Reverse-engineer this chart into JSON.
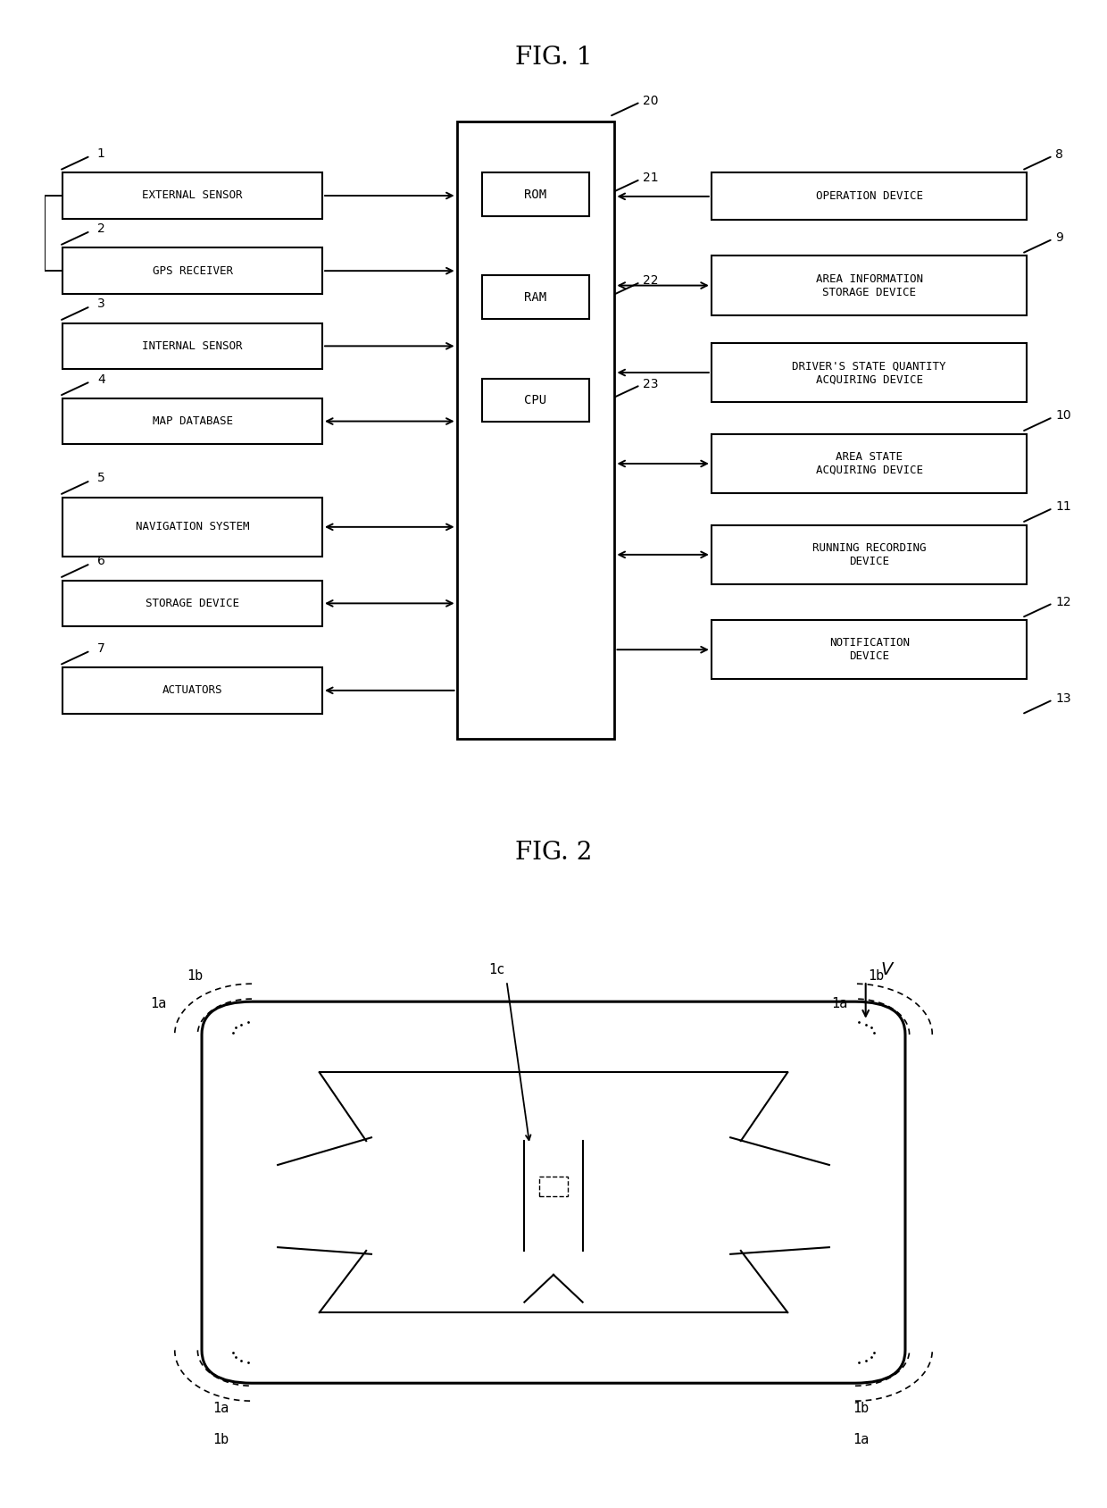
{
  "fig1_title": "FIG. 1",
  "fig2_title": "FIG. 2",
  "background_color": "#ffffff",
  "left_boxes": [
    {
      "label": "EXTERNAL SENSOR",
      "num": "1",
      "arrow": "right"
    },
    {
      "label": "GPS RECEIVER",
      "num": "2",
      "arrow": "right"
    },
    {
      "label": "INTERNAL SENSOR",
      "num": "3",
      "arrow": "right"
    },
    {
      "label": "MAP DATABASE",
      "num": "4",
      "arrow": "both"
    },
    {
      "label": "NAVIGATION SYSTEM",
      "num": "5",
      "arrow": "both"
    },
    {
      "label": "STORAGE DEVICE",
      "num": "6",
      "arrow": "both"
    },
    {
      "label": "ACTUATORS",
      "num": "7",
      "arrow": "left"
    }
  ],
  "inner_boxes": [
    {
      "label": "ROM",
      "num": "21"
    },
    {
      "label": "RAM",
      "num": "22"
    },
    {
      "label": "CPU",
      "num": "23"
    }
  ],
  "right_boxes": [
    {
      "label": "OPERATION DEVICE",
      "num": "8",
      "arrow": "left"
    },
    {
      "label": "AREA INFORMATION\nSTORAGE DEVICE",
      "num": "9",
      "arrow": "both"
    },
    {
      "label": "DRIVER'S STATE QUANTITY\nACQUIRING DEVICE",
      "num": "",
      "arrow": "left"
    },
    {
      "label": "AREA STATE\nACQUIRING DEVICE",
      "num": "10",
      "arrow": "both"
    },
    {
      "label": "RUNNING RECORDING\nDEVICE",
      "num": "11",
      "arrow": "both"
    },
    {
      "label": "NOTIFICATION\nDEVICE",
      "num": "12",
      "arrow": "right"
    }
  ],
  "center_num": "20",
  "num_13": "13"
}
